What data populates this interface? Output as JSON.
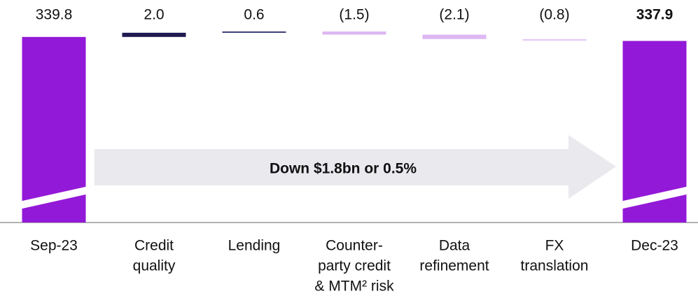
{
  "chart_data": {
    "type": "waterfall",
    "categories": [
      [
        "Sep-23"
      ],
      [
        "Credit",
        "quality"
      ],
      [
        "Lending"
      ],
      [
        "Counter-",
        "party credit",
        "& MTM² risk"
      ],
      [
        "Data",
        "refinement"
      ],
      [
        "FX",
        "translation"
      ],
      [
        "Dec-23"
      ]
    ],
    "values": [
      339.8,
      2.0,
      0.6,
      -1.5,
      -2.1,
      -0.8,
      337.9
    ],
    "value_labels": [
      "339.8",
      "2.0",
      "0.6",
      "(1.5)",
      "(2.1)",
      "(0.8)",
      "337.9"
    ],
    "kinds": [
      "total",
      "delta",
      "delta",
      "delta",
      "delta",
      "delta",
      "total"
    ],
    "colors": [
      "#9319d8",
      "#1e1a50",
      "#2c2a6c",
      "#ddb8f2",
      "#ddb8f2",
      "#e6caf5",
      "#9319d8"
    ],
    "bold_labels": [
      false,
      false,
      false,
      false,
      false,
      false,
      true
    ],
    "annotation": "Down $1.8bn or 0.5%",
    "axis_break": true
  }
}
